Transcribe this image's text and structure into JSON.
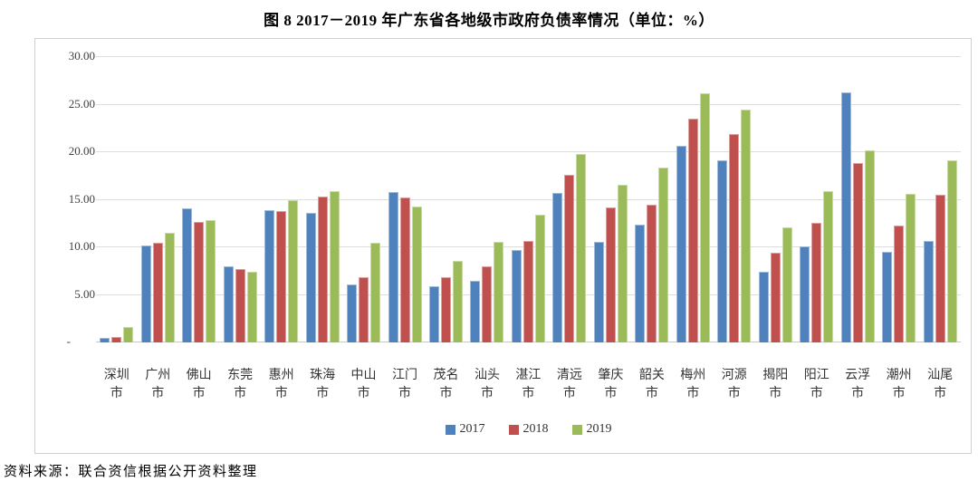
{
  "title": "图 8  2017－2019 年广东省各地级市政府负债率情况（单位：%）",
  "source": "资料来源：联合资信根据公开资料整理",
  "chart_data": {
    "type": "bar",
    "title": "图 8  2017－2019 年广东省各地级市政府负债率情况（单位：%）",
    "xlabel": "",
    "ylabel": "",
    "ylim": [
      0,
      30
    ],
    "ytick_interval": 5,
    "ytick_labels": [
      "-",
      "5.00",
      "10.00",
      "15.00",
      "20.00",
      "25.00",
      "30.00"
    ],
    "grid": true,
    "legend_position": "bottom",
    "categories": [
      "深圳市",
      "广州市",
      "佛山市",
      "东莞市",
      "惠州市",
      "珠海市",
      "中山市",
      "江门市",
      "茂名市",
      "汕头市",
      "湛江市",
      "清远市",
      "肇庆市",
      "韶关市",
      "梅州市",
      "河源市",
      "揭阳市",
      "阳江市",
      "云浮市",
      "潮州市",
      "汕尾市"
    ],
    "series": [
      {
        "name": "2017",
        "color": "#4F81BD",
        "values": [
          0.5,
          10.2,
          14.1,
          8.0,
          13.9,
          13.6,
          6.1,
          15.8,
          5.9,
          6.5,
          9.7,
          15.7,
          10.6,
          12.4,
          20.7,
          19.1,
          7.4,
          10.1,
          26.3,
          9.5,
          10.7
        ]
      },
      {
        "name": "2018",
        "color": "#C0504D",
        "values": [
          0.6,
          10.5,
          12.7,
          7.7,
          13.8,
          15.3,
          6.9,
          15.2,
          6.9,
          8.0,
          10.7,
          17.6,
          14.2,
          14.5,
          23.5,
          21.9,
          9.4,
          12.6,
          18.9,
          12.3,
          15.5
        ]
      },
      {
        "name": "2019",
        "color": "#9BBB59",
        "values": [
          1.6,
          11.5,
          12.9,
          7.4,
          15.0,
          15.9,
          10.5,
          14.3,
          8.6,
          10.6,
          13.4,
          19.8,
          16.6,
          18.4,
          26.2,
          24.5,
          12.1,
          15.9,
          20.2,
          15.6,
          19.1
        ]
      }
    ]
  }
}
